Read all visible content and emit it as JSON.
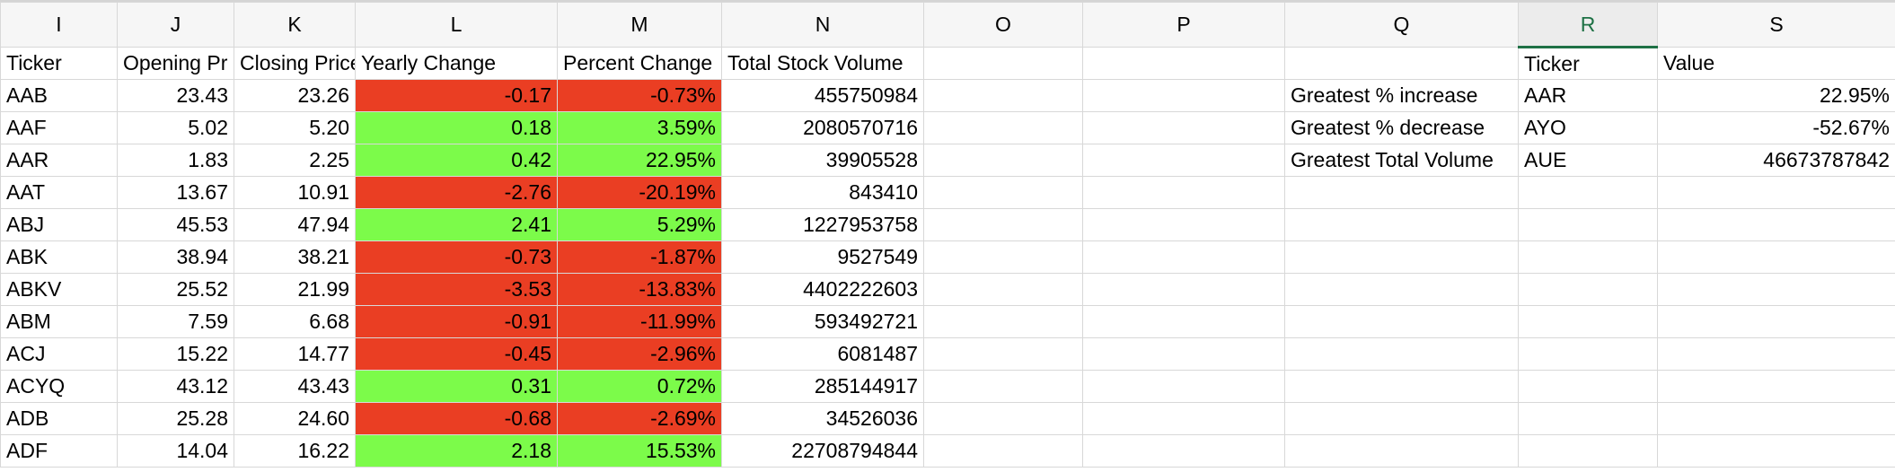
{
  "columns": [
    "I",
    "J",
    "K",
    "L",
    "M",
    "N",
    "O",
    "P",
    "Q",
    "R",
    "S"
  ],
  "selected_column": "R",
  "colors": {
    "positive": "#7cfb4a",
    "negative": "#ea3e23",
    "selected_header": "#1e7145"
  },
  "headers": {
    "ticker": "Ticker",
    "open": "Opening Pr",
    "close": "Closing Price",
    "yearly": "Yearly Change",
    "percent": "Percent Change",
    "volume": "Total Stock Volume",
    "summary_ticker": "Ticker",
    "summary_value": "Value"
  },
  "rows": [
    {
      "ticker": "AAB",
      "open": "23.43",
      "close": "23.26",
      "yearly": "-0.17",
      "percent": "-0.73%",
      "volume": "455750984",
      "sign": "neg"
    },
    {
      "ticker": "AAF",
      "open": "5.02",
      "close": "5.20",
      "yearly": "0.18",
      "percent": "3.59%",
      "volume": "2080570716",
      "sign": "pos"
    },
    {
      "ticker": "AAR",
      "open": "1.83",
      "close": "2.25",
      "yearly": "0.42",
      "percent": "22.95%",
      "volume": "39905528",
      "sign": "pos"
    },
    {
      "ticker": "AAT",
      "open": "13.67",
      "close": "10.91",
      "yearly": "-2.76",
      "percent": "-20.19%",
      "volume": "843410",
      "sign": "neg"
    },
    {
      "ticker": "ABJ",
      "open": "45.53",
      "close": "47.94",
      "yearly": "2.41",
      "percent": "5.29%",
      "volume": "1227953758",
      "sign": "pos"
    },
    {
      "ticker": "ABK",
      "open": "38.94",
      "close": "38.21",
      "yearly": "-0.73",
      "percent": "-1.87%",
      "volume": "9527549",
      "sign": "neg"
    },
    {
      "ticker": "ABKV",
      "open": "25.52",
      "close": "21.99",
      "yearly": "-3.53",
      "percent": "-13.83%",
      "volume": "4402222603",
      "sign": "neg"
    },
    {
      "ticker": "ABM",
      "open": "7.59",
      "close": "6.68",
      "yearly": "-0.91",
      "percent": "-11.99%",
      "volume": "593492721",
      "sign": "neg"
    },
    {
      "ticker": "ACJ",
      "open": "15.22",
      "close": "14.77",
      "yearly": "-0.45",
      "percent": "-2.96%",
      "volume": "6081487",
      "sign": "neg"
    },
    {
      "ticker": "ACYQ",
      "open": "43.12",
      "close": "43.43",
      "yearly": "0.31",
      "percent": "0.72%",
      "volume": "285144917",
      "sign": "pos"
    },
    {
      "ticker": "ADB",
      "open": "25.28",
      "close": "24.60",
      "yearly": "-0.68",
      "percent": "-2.69%",
      "volume": "34526036",
      "sign": "neg"
    },
    {
      "ticker": "ADF",
      "open": "14.04",
      "close": "16.22",
      "yearly": "2.18",
      "percent": "15.53%",
      "volume": "22708794844",
      "sign": "pos"
    }
  ],
  "summary": [
    {
      "label": "Greatest % increase",
      "ticker": "AAR",
      "value": "22.95%"
    },
    {
      "label": "Greatest % decrease",
      "ticker": "AYO",
      "value": "-52.67%"
    },
    {
      "label": "Greatest Total Volume",
      "ticker": "AUE",
      "value": "46673787842"
    }
  ]
}
